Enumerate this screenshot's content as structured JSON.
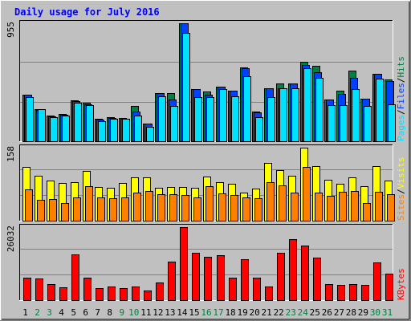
{
  "chart_data": [
    {
      "type": "bar",
      "title": "Daily usage for July 2016",
      "categories": [
        "1",
        "2",
        "3",
        "4",
        "5",
        "6",
        "7",
        "8",
        "9",
        "10",
        "11",
        "12",
        "13",
        "14",
        "15",
        "16",
        "17",
        "18",
        "19",
        "20",
        "21",
        "22",
        "23",
        "24",
        "25",
        "26",
        "27",
        "28",
        "29",
        "30",
        "31"
      ],
      "weekend_days": [
        "2",
        "3",
        "9",
        "10",
        "16",
        "17",
        "23",
        "24",
        "30",
        "31"
      ],
      "y_max_label": "955",
      "ylim": [
        0,
        955
      ],
      "grid": true,
      "axis_label": [
        "Pages",
        "/",
        "Files",
        "/",
        "Hits"
      ],
      "series": [
        {
          "name": "Hits",
          "color": "#008040",
          "values": [
            380,
            260,
            205,
            220,
            330,
            310,
            180,
            195,
            190,
            285,
            145,
            390,
            390,
            955,
            420,
            400,
            440,
            410,
            595,
            240,
            430,
            470,
            470,
            645,
            610,
            340,
            410,
            570,
            345,
            545,
            500
          ]
        },
        {
          "name": "Files",
          "color": "#0040ff",
          "values": [
            375,
            255,
            200,
            215,
            325,
            300,
            175,
            190,
            185,
            240,
            140,
            390,
            340,
            955,
            420,
            375,
            440,
            410,
            590,
            235,
            430,
            430,
            470,
            615,
            560,
            340,
            385,
            510,
            345,
            545,
            490
          ]
        },
        {
          "name": "Pages",
          "color": "#00e0ff",
          "values": [
            360,
            260,
            195,
            210,
            310,
            290,
            165,
            180,
            185,
            210,
            120,
            365,
            285,
            875,
            355,
            355,
            425,
            365,
            525,
            195,
            360,
            430,
            430,
            590,
            510,
            290,
            290,
            425,
            285,
            505,
            300
          ]
        }
      ]
    },
    {
      "type": "bar",
      "categories": [
        "1",
        "2",
        "3",
        "4",
        "5",
        "6",
        "7",
        "8",
        "9",
        "10",
        "11",
        "12",
        "13",
        "14",
        "15",
        "16",
        "17",
        "18",
        "19",
        "20",
        "21",
        "22",
        "23",
        "24",
        "25",
        "26",
        "27",
        "28",
        "29",
        "30",
        "31"
      ],
      "y_max_label": "158",
      "ylim": [
        0,
        158
      ],
      "grid": true,
      "axis_label": [
        "Sites",
        "/",
        "Visits"
      ],
      "series": [
        {
          "name": "Visits",
          "color": "#ffff00",
          "values": [
            116,
            98,
            86,
            81,
            83,
            108,
            73,
            71,
            82,
            94,
            94,
            72,
            73,
            73,
            71,
            95,
            83,
            80,
            61,
            69,
            125,
            110,
            98,
            158,
            118,
            89,
            79,
            94,
            74,
            118,
            87
          ]
        },
        {
          "name": "Sites",
          "color": "#ff8000",
          "values": [
            67,
            45,
            47,
            39,
            51,
            74,
            51,
            49,
            50,
            61,
            64,
            57,
            57,
            55,
            51,
            74,
            59,
            56,
            51,
            48,
            83,
            76,
            60,
            116,
            61,
            54,
            63,
            64,
            38,
            63,
            58
          ]
        }
      ]
    },
    {
      "type": "bar",
      "categories": [
        "1",
        "2",
        "3",
        "4",
        "5",
        "6",
        "7",
        "8",
        "9",
        "10",
        "11",
        "12",
        "13",
        "14",
        "15",
        "16",
        "17",
        "18",
        "19",
        "20",
        "21",
        "22",
        "23",
        "24",
        "25",
        "26",
        "27",
        "28",
        "29",
        "30",
        "31"
      ],
      "y_max_label": "26032",
      "ylim": [
        0,
        26032
      ],
      "grid": true,
      "axis_label": [
        "KBytes"
      ],
      "series": [
        {
          "name": "KBytes",
          "color": "#ff0000",
          "values": [
            8100,
            7700,
            5700,
            4500,
            16300,
            8100,
            4300,
            4800,
            4300,
            4800,
            3400,
            6400,
            13600,
            26032,
            16800,
            15500,
            15900,
            8100,
            14600,
            8100,
            4900,
            16800,
            21800,
            19500,
            15300,
            5700,
            5500,
            5700,
            5500,
            13400,
            9300
          ]
        }
      ]
    }
  ]
}
